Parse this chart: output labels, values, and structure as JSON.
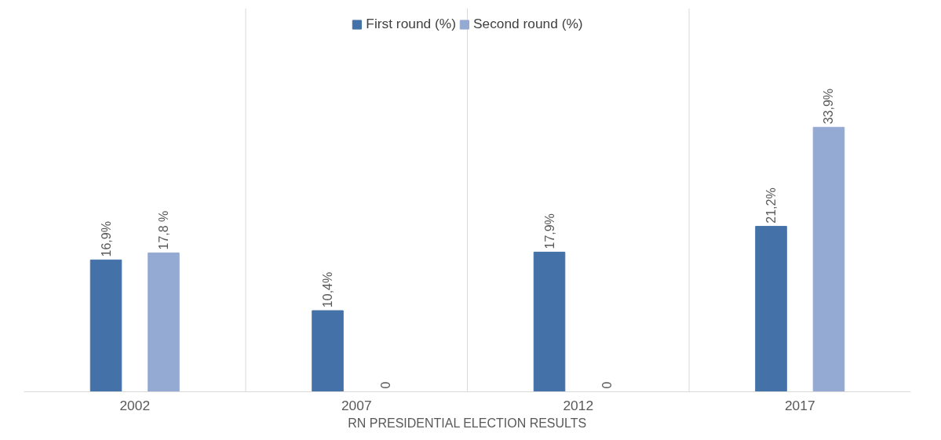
{
  "chart_data": {
    "type": "bar",
    "xlabel": "RN PRESIDENTIAL ELECTION RESULTS",
    "categories": [
      "2002",
      "2007",
      "2012",
      "2017"
    ],
    "series": [
      {
        "name": "First round (%)",
        "color": "#4472a8",
        "values": [
          16.9,
          10.4,
          17.9,
          21.2
        ],
        "value_labels": [
          "16,9%",
          "10,4%",
          "17,9%",
          "21,2%"
        ]
      },
      {
        "name": "Second round (%)",
        "color": "#95aad2",
        "values": [
          17.8,
          0,
          0,
          33.9
        ],
        "value_labels": [
          "17,8 %",
          "0",
          "0",
          "33,9%"
        ]
      }
    ],
    "legend": "top"
  }
}
